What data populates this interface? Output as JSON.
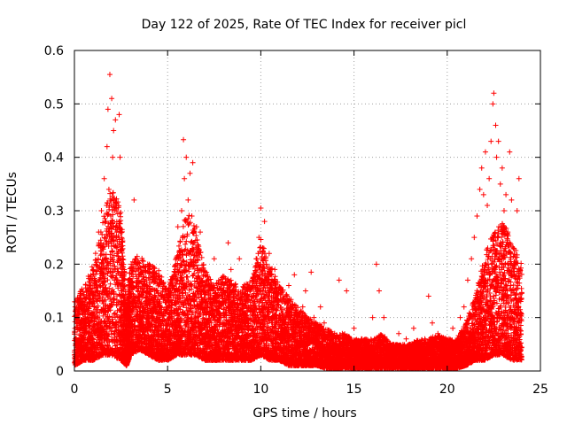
{
  "chart_data": {
    "type": "scatter",
    "title": "Day 122 of 2025, Rate Of TEC Index for receiver picl",
    "xlabel": "GPS time / hours",
    "ylabel": "ROTI / TECUs",
    "xlim": [
      0,
      25
    ],
    "ylim": [
      0,
      0.6
    ],
    "xticks": [
      0,
      5,
      10,
      15,
      20,
      25
    ],
    "xtick_labels": [
      "0",
      "5",
      "10",
      "15",
      "20",
      "25"
    ],
    "yticks": [
      0,
      0.1,
      0.2,
      0.3,
      0.4,
      0.5,
      0.6
    ],
    "ytick_labels": [
      "0",
      "0.1",
      "0.2",
      "0.3",
      "0.4",
      "0.5",
      "0.6"
    ],
    "grid": true,
    "marker": "plus",
    "color": "#ff0000",
    "series": [
      {
        "x": [
          0.05,
          0.15,
          0.3,
          0.4,
          0.5,
          0.6,
          0.75,
          0.85,
          0.95,
          1.05,
          1.15,
          1.25,
          1.3,
          1.4,
          1.45,
          1.55,
          1.6,
          1.7,
          1.75,
          1.8,
          1.85,
          1.9,
          1.95,
          2.0,
          2.05,
          2.1,
          2.15,
          2.2,
          2.25,
          2.3,
          2.4,
          2.45,
          2.55,
          2.6,
          2.65,
          2.75,
          2.9,
          3.05,
          3.2,
          3.3,
          3.4,
          3.5,
          3.6,
          3.75,
          3.9,
          4.05,
          4.2,
          4.35,
          4.5,
          4.65,
          4.8,
          4.95,
          5.1,
          5.25,
          5.4,
          5.55,
          5.65,
          5.75,
          5.8,
          5.85,
          5.9,
          6.0,
          6.1,
          6.2,
          6.3,
          6.35,
          6.45,
          6.55,
          6.65,
          6.75,
          6.9,
          7.05,
          7.2,
          7.35,
          7.5,
          7.65,
          7.8,
          7.95,
          8.1,
          8.25,
          8.4,
          8.55,
          8.7,
          8.85,
          9.0,
          9.15,
          9.3,
          9.45,
          9.6,
          9.75,
          9.9,
          10.0,
          10.1,
          10.2,
          10.3,
          10.45,
          10.6,
          10.75,
          10.9,
          11.05,
          11.2,
          11.35,
          11.5,
          11.65,
          11.8,
          11.95,
          12.1,
          12.25,
          12.4,
          12.55,
          12.7,
          12.85,
          13.0,
          13.2,
          13.4,
          13.6,
          13.8,
          14.0,
          14.2,
          14.4,
          14.6,
          14.8,
          15.0,
          15.2,
          15.4,
          15.6,
          15.8,
          16.0,
          16.2,
          16.35,
          16.45,
          16.6,
          16.8,
          17.0,
          17.2,
          17.4,
          17.6,
          17.8,
          18.0,
          18.2,
          18.4,
          18.6,
          18.8,
          19.0,
          19.2,
          19.35,
          19.5,
          19.7,
          19.9,
          20.1,
          20.3,
          20.5,
          20.7,
          20.9,
          21.1,
          21.3,
          21.45,
          21.6,
          21.75,
          21.85,
          21.95,
          22.05,
          22.15,
          22.25,
          22.35,
          22.45,
          22.5,
          22.6,
          22.65,
          22.75,
          22.85,
          22.95,
          23.05,
          23.15,
          23.25,
          23.35,
          23.45,
          23.55,
          23.65,
          23.75,
          23.85
        ],
        "y": [
          0.06,
          0.09,
          0.05,
          0.13,
          0.08,
          0.11,
          0.15,
          0.09,
          0.17,
          0.12,
          0.2,
          0.1,
          0.26,
          0.16,
          0.3,
          0.18,
          0.36,
          0.24,
          0.42,
          0.49,
          0.34,
          0.555,
          0.29,
          0.51,
          0.4,
          0.45,
          0.3,
          0.47,
          0.26,
          0.22,
          0.48,
          0.4,
          0.15,
          0.07,
          0.1,
          0.12,
          0.17,
          0.2,
          0.32,
          0.21,
          0.15,
          0.18,
          0.08,
          0.16,
          0.13,
          0.19,
          0.1,
          0.11,
          0.09,
          0.14,
          0.07,
          0.12,
          0.1,
          0.16,
          0.18,
          0.27,
          0.21,
          0.3,
          0.25,
          0.433,
          0.36,
          0.4,
          0.32,
          0.37,
          0.29,
          0.39,
          0.24,
          0.27,
          0.22,
          0.26,
          0.15,
          0.13,
          0.17,
          0.09,
          0.21,
          0.12,
          0.1,
          0.14,
          0.11,
          0.24,
          0.19,
          0.16,
          0.12,
          0.21,
          0.09,
          0.13,
          0.08,
          0.11,
          0.17,
          0.21,
          0.25,
          0.305,
          0.23,
          0.28,
          0.2,
          0.22,
          0.17,
          0.19,
          0.13,
          0.15,
          0.1,
          0.14,
          0.16,
          0.09,
          0.18,
          0.11,
          0.07,
          0.12,
          0.15,
          0.08,
          0.185,
          0.1,
          0.06,
          0.12,
          0.09,
          0.05,
          0.07,
          0.04,
          0.17,
          0.06,
          0.15,
          0.05,
          0.08,
          0.04,
          0.06,
          0.03,
          0.05,
          0.1,
          0.2,
          0.15,
          0.04,
          0.1,
          0.05,
          0.03,
          0.04,
          0.07,
          0.03,
          0.06,
          0.04,
          0.08,
          0.05,
          0.03,
          0.06,
          0.14,
          0.09,
          0.04,
          0.07,
          0.05,
          0.03,
          0.06,
          0.08,
          0.05,
          0.1,
          0.12,
          0.17,
          0.21,
          0.25,
          0.29,
          0.34,
          0.38,
          0.33,
          0.41,
          0.31,
          0.36,
          0.43,
          0.5,
          0.52,
          0.46,
          0.4,
          0.43,
          0.35,
          0.38,
          0.3,
          0.33,
          0.26,
          0.41,
          0.32,
          0.23,
          0.2,
          0.3,
          0.36
        ],
        "envelope": {
          "x": [
            0,
            0.5,
            1.0,
            1.5,
            2.0,
            2.5,
            2.8,
            3.0,
            3.5,
            4.0,
            4.5,
            5.0,
            5.5,
            6.0,
            6.5,
            7.0,
            7.5,
            8.0,
            8.5,
            9.0,
            9.5,
            10.0,
            10.5,
            11.0,
            11.5,
            12.0,
            12.5,
            13.0,
            13.5,
            14.0,
            14.5,
            15.0,
            15.5,
            16.0,
            16.5,
            17.0,
            17.5,
            18.0,
            18.5,
            19.0,
            19.5,
            20.0,
            20.5,
            21.0,
            21.5,
            22.0,
            22.5,
            23.0,
            23.5,
            24.0
          ],
          "high": [
            0.13,
            0.16,
            0.2,
            0.28,
            0.35,
            0.3,
            0.12,
            0.2,
            0.22,
            0.2,
            0.19,
            0.15,
            0.22,
            0.3,
            0.27,
            0.19,
            0.16,
            0.18,
            0.17,
            0.16,
            0.17,
            0.25,
            0.2,
            0.16,
            0.14,
            0.12,
            0.1,
            0.09,
            0.08,
            0.07,
            0.07,
            0.06,
            0.06,
            0.06,
            0.07,
            0.05,
            0.05,
            0.05,
            0.06,
            0.06,
            0.07,
            0.06,
            0.06,
            0.09,
            0.14,
            0.22,
            0.26,
            0.28,
            0.24,
            0.2
          ],
          "low": [
            0.01,
            0.02,
            0.02,
            0.03,
            0.03,
            0.02,
            0.01,
            0.03,
            0.04,
            0.03,
            0.02,
            0.02,
            0.03,
            0.03,
            0.03,
            0.02,
            0.02,
            0.02,
            0.02,
            0.02,
            0.02,
            0.03,
            0.02,
            0.02,
            0.01,
            0.01,
            0.01,
            0.01,
            0.005,
            0.005,
            0.005,
            0.005,
            0.005,
            0.005,
            0.005,
            0.005,
            0.005,
            0.005,
            0.005,
            0.005,
            0.005,
            0.005,
            0.005,
            0.01,
            0.02,
            0.02,
            0.03,
            0.03,
            0.02,
            0.02
          ]
        }
      }
    ]
  }
}
